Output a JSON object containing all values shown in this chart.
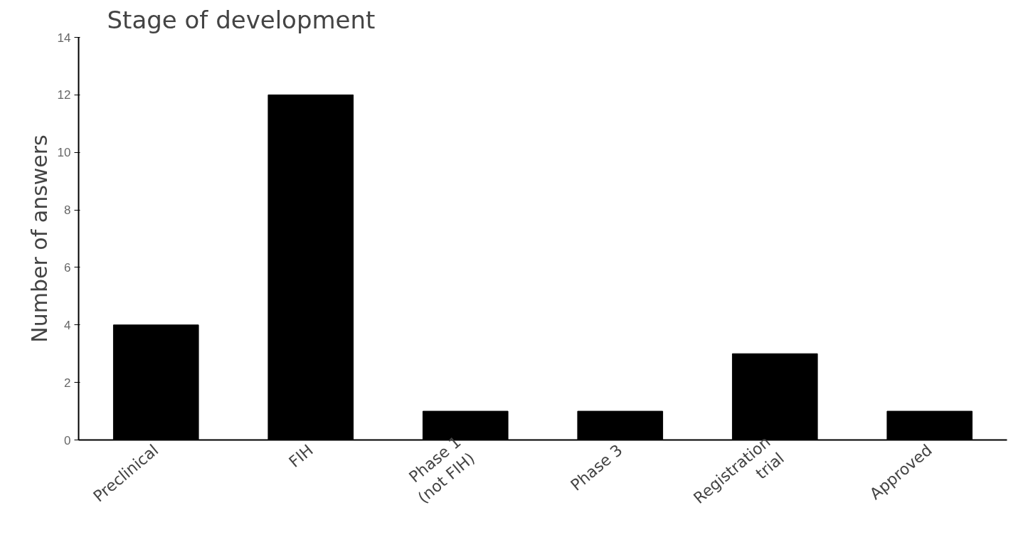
{
  "chart_data": {
    "type": "bar",
    "title": "Stage of development",
    "ylabel": "Number of answers",
    "categories": [
      "Preclinical",
      "FIH",
      "Phase 1\n(not FIH)",
      "Phase 3",
      "Registration\ntrial",
      "Approved"
    ],
    "values": [
      4,
      12,
      1,
      1,
      3,
      1
    ],
    "color": "#000000",
    "ylim": [
      0,
      14
    ],
    "yticks": [
      0,
      2,
      4,
      6,
      8,
      10,
      12,
      14
    ],
    "grid": false
  }
}
